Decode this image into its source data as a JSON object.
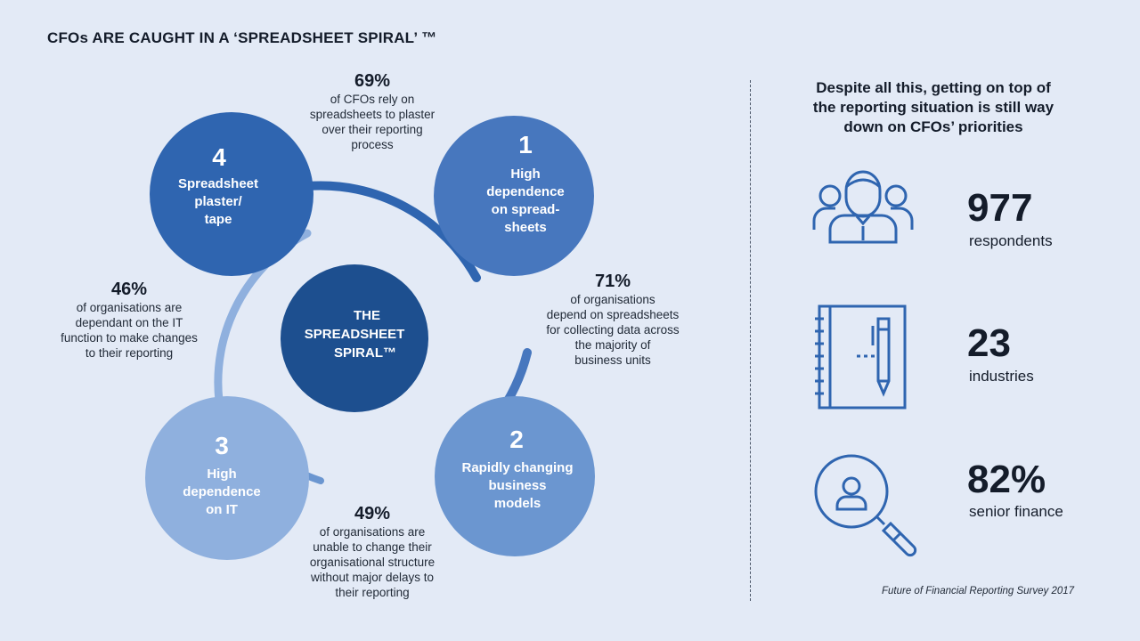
{
  "title": "CFOs ARE CAUGHT IN A ‘SPREADSHEET SPIRAL’ ™",
  "center": {
    "lines": [
      "THE",
      "SPREADSHEET",
      "SPIRAL™"
    ]
  },
  "circles": [
    {
      "number": "1",
      "lines": [
        "High",
        "dependence",
        "on  spread-",
        "sheets"
      ],
      "color": "#4777be"
    },
    {
      "number": "2",
      "lines": [
        "Rapidly changing",
        "business",
        "models"
      ],
      "color": "#6b96d0"
    },
    {
      "number": "3",
      "lines": [
        "High",
        "dependence",
        "on  IT"
      ],
      "color": "#8fb0de"
    },
    {
      "number": "4",
      "lines": [
        "Spreadsheet",
        "plaster/",
        "tape"
      ],
      "color": "#2f65b0"
    }
  ],
  "stats": [
    {
      "pct": "69%",
      "lines": [
        "of CFOs rely on",
        "spreadsheets to plaster",
        "over their reporting",
        "process"
      ]
    },
    {
      "pct": "71%",
      "lines": [
        "of organisations",
        "depend on spreadsheets",
        "for collecting data across",
        "the majority of",
        "business units"
      ]
    },
    {
      "pct": "49%",
      "lines": [
        "of organisations are",
        "unable to change their",
        "organisational structure",
        "without major delays to",
        "their reporting"
      ]
    },
    {
      "pct": "46%",
      "lines": [
        "of organisations are",
        "dependant on the IT",
        "function to make changes",
        "to their reporting"
      ]
    }
  ],
  "right": {
    "heading_lines": [
      "Despite all this, getting on top of",
      "the reporting situation is still way",
      "down on CFOs’ priorities"
    ],
    "metrics": [
      {
        "value": "977",
        "label": "respondents",
        "icon": "people-icon"
      },
      {
        "value": "23",
        "label": "industries",
        "icon": "notebook-pen-icon"
      },
      {
        "value": "82%",
        "label": "senior finance",
        "icon": "magnifier-person-icon"
      }
    ]
  },
  "source": "Future of Financial Reporting Survey 2017",
  "colors": {
    "background": "#e3eaf6",
    "center": "#1d4f8f",
    "icon": "#2f65b0",
    "text": "#141c2a"
  }
}
